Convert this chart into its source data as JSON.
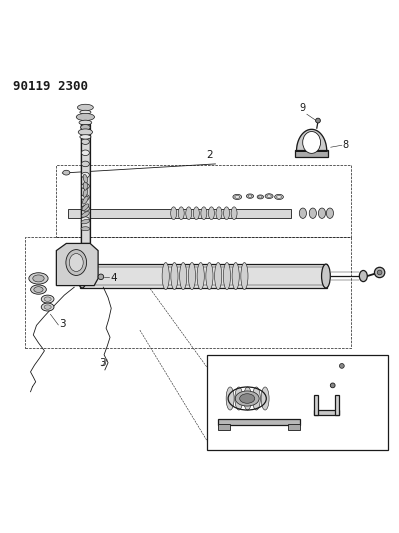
{
  "title": "90119 2300",
  "background_color": "#ffffff",
  "line_color": "#1a1a1a",
  "fig_width": 3.99,
  "fig_height": 5.33,
  "dpi": 100
}
